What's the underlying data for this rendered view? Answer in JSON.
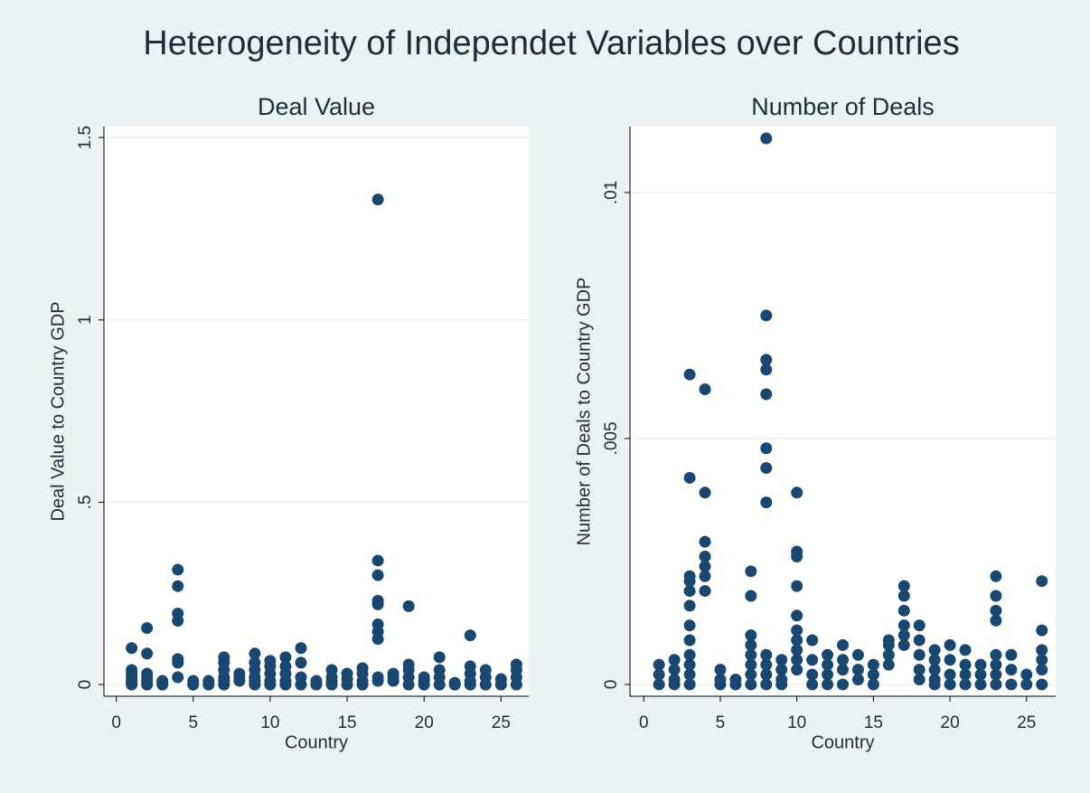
{
  "title": "Heterogeneity of Independet Variables over Countries",
  "chart_data": [
    {
      "type": "scatter",
      "title": "Deal Value",
      "xlabel": "Country",
      "ylabel": "Deal Value to Country GDP",
      "color": "#1a476f",
      "grid": true,
      "xlim": [
        -0.8,
        26.8
      ],
      "ylim": [
        -0.032,
        1.53
      ],
      "xticks": [
        0,
        5,
        10,
        15,
        20,
        25
      ],
      "yticks": [
        0,
        {
          "value": 0.5,
          "label": ".5"
        },
        1,
        1.5
      ],
      "x": [
        1,
        1,
        1,
        1,
        1,
        1,
        1,
        2,
        2,
        2,
        2,
        2,
        2,
        3,
        3,
        3,
        4,
        4,
        4,
        4,
        4,
        4,
        4,
        5,
        5,
        6,
        6,
        7,
        7,
        7,
        7,
        7,
        7,
        8,
        8,
        8,
        9,
        9,
        9,
        9,
        9,
        9,
        10,
        10,
        10,
        10,
        10,
        11,
        11,
        11,
        11,
        11,
        12,
        12,
        12,
        12,
        13,
        13,
        14,
        14,
        14,
        14,
        15,
        15,
        15,
        16,
        16,
        16,
        16,
        17,
        17,
        17,
        17,
        17,
        17,
        17,
        17,
        17,
        17,
        18,
        18,
        18,
        19,
        19,
        19,
        19,
        19,
        20,
        20,
        20,
        21,
        21,
        21,
        21,
        22,
        22,
        23,
        23,
        23,
        23,
        23,
        24,
        24,
        24,
        25,
        25,
        26,
        26,
        26,
        26
      ],
      "y": [
        0.1,
        0.04,
        0.03,
        0.02,
        0.01,
        0.005,
        0,
        0.155,
        0.085,
        0.03,
        0.02,
        0.01,
        0,
        0.01,
        0.005,
        0,
        0.315,
        0.27,
        0.195,
        0.175,
        0.07,
        0.06,
        0.02,
        0.01,
        0,
        0.01,
        0,
        0.075,
        0.06,
        0.04,
        0.02,
        0.01,
        0,
        0.03,
        0.02,
        0.01,
        0.085,
        0.06,
        0.04,
        0.02,
        0.01,
        0,
        0.065,
        0.05,
        0.03,
        0.01,
        0,
        0.075,
        0.05,
        0.03,
        0.01,
        0,
        0.1,
        0.06,
        0.02,
        0,
        0.01,
        0,
        0.04,
        0.02,
        0.01,
        0,
        0.03,
        0.015,
        0,
        0.045,
        0.03,
        0.01,
        0,
        1.33,
        0.34,
        0.3,
        0.23,
        0.22,
        0.165,
        0.145,
        0.125,
        0.02,
        0.01,
        0.03,
        0.02,
        0.01,
        0.215,
        0.055,
        0.04,
        0.02,
        0,
        0.02,
        0.01,
        0,
        0.075,
        0.04,
        0.02,
        0,
        0.005,
        0,
        0.135,
        0.05,
        0.03,
        0.01,
        0,
        0.04,
        0.02,
        0,
        0.015,
        0,
        0.055,
        0.04,
        0.02,
        0
      ]
    },
    {
      "type": "scatter",
      "title": "Number of Deals",
      "xlabel": "Country",
      "ylabel": "Number of Deals to Country GDP",
      "color": "#1a476f",
      "grid": true,
      "xlim": [
        -0.9,
        26.9
      ],
      "ylim": [
        -0.00024,
        0.01134
      ],
      "xticks": [
        0,
        5,
        10,
        15,
        20,
        25
      ],
      "yticks": [
        0,
        {
          "value": 0.005,
          "label": ".005"
        },
        {
          "value": 0.01,
          "label": ".01"
        }
      ],
      "x": [
        1,
        1,
        1,
        2,
        2,
        2,
        2,
        3,
        3,
        3,
        3,
        3,
        3,
        3,
        3,
        3,
        3,
        3,
        3,
        4,
        4,
        4,
        4,
        4,
        4,
        4,
        5,
        5,
        5,
        6,
        6,
        7,
        7,
        7,
        7,
        7,
        7,
        7,
        7,
        8,
        8,
        8,
        8,
        8,
        8,
        8,
        8,
        8,
        8,
        8,
        8,
        9,
        9,
        9,
        9,
        10,
        10,
        10,
        10,
        10,
        10,
        10,
        10,
        10,
        10,
        11,
        11,
        11,
        11,
        12,
        12,
        12,
        12,
        13,
        13,
        13,
        13,
        14,
        14,
        14,
        15,
        15,
        15,
        16,
        16,
        16,
        16,
        17,
        17,
        17,
        17,
        17,
        17,
        18,
        18,
        18,
        18,
        18,
        19,
        19,
        19,
        19,
        19,
        20,
        20,
        20,
        20,
        21,
        21,
        21,
        21,
        22,
        22,
        22,
        23,
        23,
        23,
        23,
        23,
        23,
        23,
        23,
        24,
        24,
        24,
        25,
        25,
        26,
        26,
        26,
        26,
        26,
        26
      ],
      "y": [
        0.0004,
        0.0002,
        0,
        0.0005,
        0.0003,
        0.0001,
        0,
        0.0063,
        0.0042,
        0.0022,
        0.0021,
        0.0019,
        0.0016,
        0.0012,
        0.0009,
        0.0006,
        0.0004,
        0.0002,
        0,
        0.006,
        0.0039,
        0.0029,
        0.0026,
        0.0024,
        0.0022,
        0.0019,
        0.0003,
        0.0001,
        0,
        0.0001,
        0,
        0.0023,
        0.0018,
        0.001,
        0.0008,
        0.0006,
        0.0004,
        0.0002,
        0,
        0.0111,
        0.0075,
        0.0066,
        0.0064,
        0.0059,
        0.0048,
        0.0044,
        0.0037,
        0.0006,
        0.0004,
        0.0002,
        0,
        0.0005,
        0.0003,
        0.0001,
        0,
        0.0039,
        0.0027,
        0.0026,
        0.002,
        0.0014,
        0.0011,
        0.0009,
        0.0007,
        0.0005,
        0.0003,
        0.0009,
        0.0005,
        0.0002,
        0,
        0.0006,
        0.0004,
        0.0002,
        0,
        0.0008,
        0.0005,
        0.0003,
        0,
        0.0006,
        0.0003,
        0.0001,
        0.0004,
        0.0002,
        0,
        0.0009,
        0.0008,
        0.0006,
        0.0004,
        0.002,
        0.0018,
        0.0015,
        0.0012,
        0.001,
        0.0008,
        0.0012,
        0.0009,
        0.0006,
        0.0003,
        0.0001,
        0.0007,
        0.0005,
        0.0003,
        0.0001,
        0,
        0.0008,
        0.0005,
        0.0002,
        0,
        0.0007,
        0.0004,
        0.0002,
        0,
        0.0004,
        0.0002,
        0,
        0.0022,
        0.0018,
        0.0015,
        0.0013,
        0.0006,
        0.0004,
        0.0002,
        0,
        0.0006,
        0.0003,
        0,
        0.0002,
        0,
        0.0021,
        0.0011,
        0.0007,
        0.0005,
        0.0003,
        0
      ]
    }
  ]
}
